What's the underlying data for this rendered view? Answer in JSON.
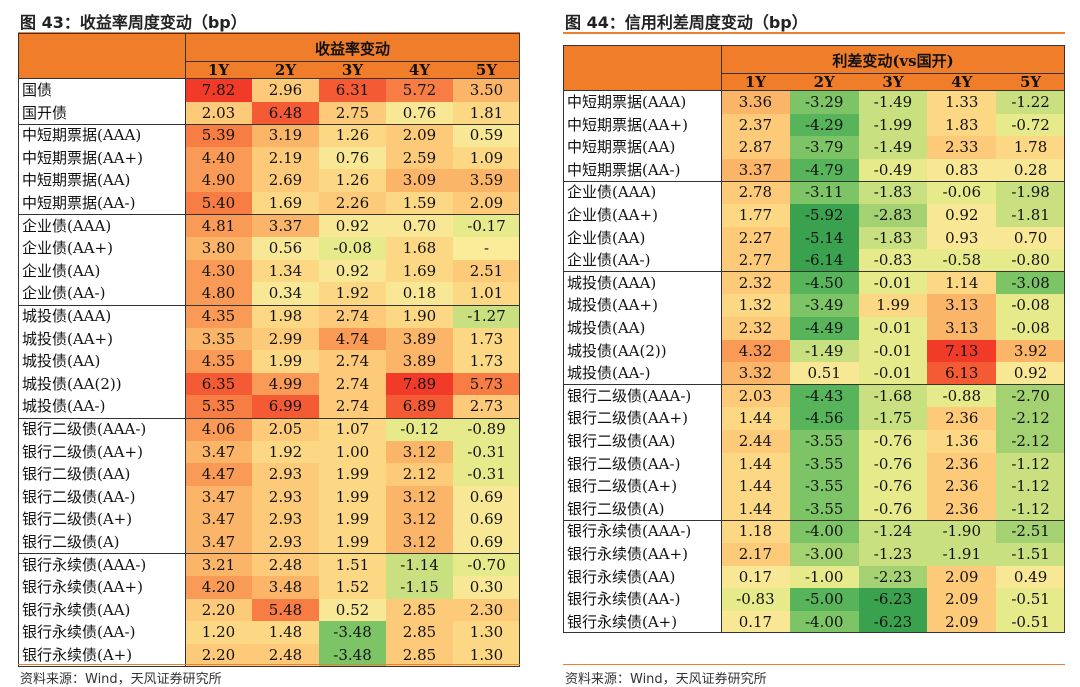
{
  "footer_label": "资料来源：Wind，天风证券研究所",
  "chart_data": [
    {
      "type": "table",
      "title": "图 43：收益率周度变动（bp）",
      "header": "收益率变动",
      "columns": [
        "1Y",
        "2Y",
        "3Y",
        "4Y",
        "5Y"
      ],
      "groups": [
        2,
        4,
        4,
        5,
        6,
        5
      ],
      "rows": [
        {
          "label": "国债",
          "values": [
            "7.82",
            "2.96",
            "6.31",
            "5.72",
            "3.50"
          ]
        },
        {
          "label": "国开债",
          "values": [
            "2.03",
            "6.48",
            "2.75",
            "0.76",
            "1.81"
          ]
        },
        {
          "label": "中短期票据(AAA)",
          "values": [
            "5.39",
            "3.19",
            "1.26",
            "2.09",
            "0.59"
          ]
        },
        {
          "label": "中短期票据(AA+)",
          "values": [
            "4.40",
            "2.19",
            "0.76",
            "2.59",
            "1.09"
          ]
        },
        {
          "label": "中短期票据(AA)",
          "values": [
            "4.90",
            "2.69",
            "1.26",
            "3.09",
            "3.59"
          ]
        },
        {
          "label": "中短期票据(AA-)",
          "values": [
            "5.40",
            "1.69",
            "2.26",
            "1.59",
            "2.09"
          ]
        },
        {
          "label": "企业债(AAA)",
          "values": [
            "4.81",
            "3.37",
            "0.92",
            "0.70",
            "-0.17"
          ]
        },
        {
          "label": "企业债(AA+)",
          "values": [
            "3.80",
            "0.56",
            "-0.08",
            "1.68",
            "-"
          ]
        },
        {
          "label": "企业债(AA)",
          "values": [
            "4.30",
            "1.34",
            "0.92",
            "1.69",
            "2.51"
          ]
        },
        {
          "label": "企业债(AA-)",
          "values": [
            "4.80",
            "0.34",
            "1.92",
            "0.18",
            "1.01"
          ]
        },
        {
          "label": "城投债(AAA)",
          "values": [
            "4.35",
            "1.98",
            "2.74",
            "1.90",
            "-1.27"
          ]
        },
        {
          "label": "城投债(AA+)",
          "values": [
            "3.35",
            "2.99",
            "4.74",
            "3.89",
            "1.73"
          ]
        },
        {
          "label": "城投债(AA)",
          "values": [
            "4.35",
            "1.99",
            "2.74",
            "3.89",
            "1.73"
          ]
        },
        {
          "label": "城投债(AA(2))",
          "values": [
            "6.35",
            "4.99",
            "2.74",
            "7.89",
            "5.73"
          ]
        },
        {
          "label": "城投债(AA-)",
          "values": [
            "5.35",
            "6.99",
            "2.74",
            "6.89",
            "2.73"
          ]
        },
        {
          "label": "银行二级债(AAA-)",
          "values": [
            "4.06",
            "2.05",
            "1.07",
            "-0.12",
            "-0.89"
          ]
        },
        {
          "label": "银行二级债(AA+)",
          "values": [
            "3.47",
            "1.92",
            "1.00",
            "3.12",
            "-0.31"
          ]
        },
        {
          "label": "银行二级债(AA)",
          "values": [
            "4.47",
            "2.93",
            "1.99",
            "2.12",
            "-0.31"
          ]
        },
        {
          "label": "银行二级债(AA-)",
          "values": [
            "3.47",
            "2.93",
            "1.99",
            "3.12",
            "0.69"
          ]
        },
        {
          "label": "银行二级债(A+)",
          "values": [
            "3.47",
            "2.93",
            "1.99",
            "3.12",
            "0.69"
          ]
        },
        {
          "label": "银行二级债(A)",
          "values": [
            "3.47",
            "2.93",
            "1.99",
            "3.12",
            "0.69"
          ]
        },
        {
          "label": "银行永续债(AAA-)",
          "values": [
            "3.21",
            "2.48",
            "1.51",
            "-1.14",
            "-0.70"
          ]
        },
        {
          "label": "银行永续债(AA+)",
          "values": [
            "4.20",
            "3.48",
            "1.52",
            "-1.15",
            "0.30"
          ]
        },
        {
          "label": "银行永续债(AA)",
          "values": [
            "2.20",
            "5.48",
            "0.52",
            "2.85",
            "2.30"
          ]
        },
        {
          "label": "银行永续债(AA-)",
          "values": [
            "1.20",
            "1.48",
            "-3.48",
            "2.85",
            "1.30"
          ]
        },
        {
          "label": "银行永续债(A+)",
          "values": [
            "2.20",
            "2.48",
            "-3.48",
            "2.85",
            "1.30"
          ]
        }
      ]
    },
    {
      "type": "table",
      "title": "图 44：信用利差周度变动（bp）",
      "header": "利差变动(vs国开)",
      "columns": [
        "1Y",
        "2Y",
        "3Y",
        "4Y",
        "5Y"
      ],
      "groups": [
        4,
        4,
        5,
        6,
        5
      ],
      "rows": [
        {
          "label": "中短期票据(AAA)",
          "values": [
            "3.36",
            "-3.29",
            "-1.49",
            "1.33",
            "-1.22"
          ]
        },
        {
          "label": "中短期票据(AA+)",
          "values": [
            "2.37",
            "-4.29",
            "-1.99",
            "1.83",
            "-0.72"
          ]
        },
        {
          "label": "中短期票据(AA)",
          "values": [
            "2.87",
            "-3.79",
            "-1.49",
            "2.33",
            "1.78"
          ]
        },
        {
          "label": "中短期票据(AA-)",
          "values": [
            "3.37",
            "-4.79",
            "-0.49",
            "0.83",
            "0.28"
          ]
        },
        {
          "label": "企业债(AAA)",
          "values": [
            "2.78",
            "-3.11",
            "-1.83",
            "-0.06",
            "-1.98"
          ]
        },
        {
          "label": "企业债(AA+)",
          "values": [
            "1.77",
            "-5.92",
            "-2.83",
            "0.92",
            "-1.81"
          ]
        },
        {
          "label": "企业债(AA)",
          "values": [
            "2.27",
            "-5.14",
            "-1.83",
            "0.93",
            "0.70"
          ]
        },
        {
          "label": "企业债(AA-)",
          "values": [
            "2.77",
            "-6.14",
            "-0.83",
            "-0.58",
            "-0.80"
          ]
        },
        {
          "label": "城投债(AAA)",
          "values": [
            "2.32",
            "-4.50",
            "-0.01",
            "1.14",
            "-3.08"
          ]
        },
        {
          "label": "城投债(AA+)",
          "values": [
            "1.32",
            "-3.49",
            "1.99",
            "3.13",
            "-0.08"
          ]
        },
        {
          "label": "城投债(AA)",
          "values": [
            "2.32",
            "-4.49",
            "-0.01",
            "3.13",
            "-0.08"
          ]
        },
        {
          "label": "城投债(AA(2))",
          "values": [
            "4.32",
            "-1.49",
            "-0.01",
            "7.13",
            "3.92"
          ]
        },
        {
          "label": "城投债(AA-)",
          "values": [
            "3.32",
            "0.51",
            "-0.01",
            "6.13",
            "0.92"
          ]
        },
        {
          "label": "银行二级债(AAA-)",
          "values": [
            "2.03",
            "-4.43",
            "-1.68",
            "-0.88",
            "-2.70"
          ]
        },
        {
          "label": "银行二级债(AA+)",
          "values": [
            "1.44",
            "-4.56",
            "-1.75",
            "2.36",
            "-2.12"
          ]
        },
        {
          "label": "银行二级债(AA)",
          "values": [
            "2.44",
            "-3.55",
            "-0.76",
            "1.36",
            "-2.12"
          ]
        },
        {
          "label": "银行二级债(AA-)",
          "values": [
            "1.44",
            "-3.55",
            "-0.76",
            "2.36",
            "-1.12"
          ]
        },
        {
          "label": "银行二级债(A+)",
          "values": [
            "1.44",
            "-3.55",
            "-0.76",
            "2.36",
            "-1.12"
          ]
        },
        {
          "label": "银行二级债(A)",
          "values": [
            "1.44",
            "-3.55",
            "-0.76",
            "2.36",
            "-1.12"
          ]
        },
        {
          "label": "银行永续债(AAA-)",
          "values": [
            "1.18",
            "-4.00",
            "-1.24",
            "-1.90",
            "-2.51"
          ]
        },
        {
          "label": "银行永续债(AA+)",
          "values": [
            "2.17",
            "-3.00",
            "-1.23",
            "-1.91",
            "-1.51"
          ]
        },
        {
          "label": "银行永续债(AA)",
          "values": [
            "0.17",
            "-1.00",
            "-2.23",
            "2.09",
            "0.49"
          ]
        },
        {
          "label": "银行永续债(AA-)",
          "values": [
            "-0.83",
            "-5.00",
            "-6.23",
            "2.09",
            "-0.51"
          ]
        },
        {
          "label": "银行永续债(A+)",
          "values": [
            "0.17",
            "-4.00",
            "-6.23",
            "2.09",
            "-0.51"
          ]
        }
      ]
    }
  ]
}
